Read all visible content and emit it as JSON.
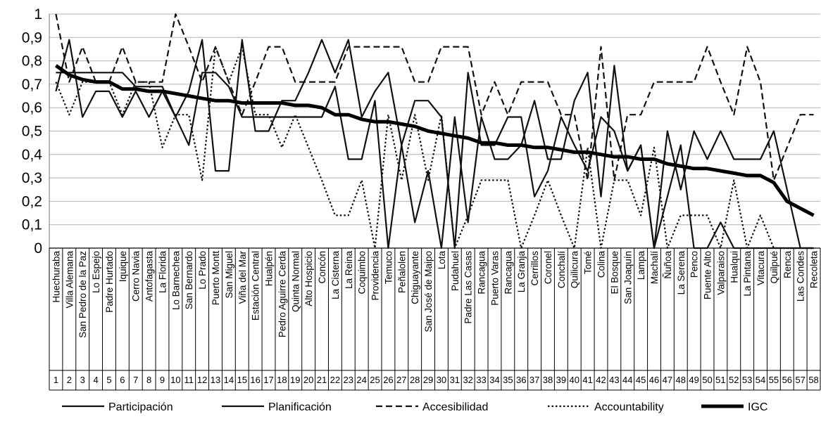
{
  "chart_data": {
    "type": "line",
    "title": "",
    "xlabel": "",
    "ylabel": "",
    "ylim": [
      0,
      1
    ],
    "yticks": [
      "0",
      "0,1",
      "0,2",
      "0,3",
      "0,4",
      "0,5",
      "0,6",
      "0,7",
      "0,8",
      "0,9",
      "1"
    ],
    "grid": true,
    "legend_position": "bottom",
    "categories": [
      "Huechuraba",
      "Villa Alemana",
      "San Pedro de la Paz",
      "Lo Espejo",
      "Padre Hurtado",
      "Iquique",
      "Cerro Navia",
      "Antofagasta",
      "La Florida",
      "Lo Barnechea",
      "San Bernardo",
      "Lo Prado",
      "Puerto Montt",
      "San Miguel",
      "Viña del Mar",
      "Estación Central",
      "Hualpén",
      "Pedro Aguirre Cerda",
      "Quinta Normal",
      "Alto Hospicio",
      "Concón",
      "La Cisterna",
      "La Reina",
      "Coquimbo",
      "Providencia",
      "Temuco",
      "Peñalolen",
      "Chiguayante",
      "San José de Maipo",
      "Lota",
      "Pudahuel",
      "Padre Las Casas",
      "Rancagua",
      "Puerto Varas",
      "Rancagua",
      "La Granja",
      "Cerrillos",
      "Coronel",
      "Conchalí",
      "Quilicura",
      "Tomé",
      "Colina",
      "El Bosque",
      "San Joaquín",
      "Lampa",
      "Machalí",
      "Ñuñoa",
      "La Serena",
      "Penco",
      "Puente Alto",
      "Valparaiso",
      "Hualqui",
      "La Pintana",
      "Vitacura",
      "Quilpué",
      "Renca",
      "Las Condes",
      "Recoleta"
    ],
    "numbers": [
      "1",
      "2",
      "3",
      "4",
      "5",
      "6",
      "7",
      "8",
      "9",
      "10",
      "11",
      "12",
      "13",
      "14",
      "15",
      "16",
      "17",
      "18",
      "19",
      "20",
      "21",
      "22",
      "23",
      "24",
      "25",
      "26",
      "27",
      "28",
      "29",
      "30",
      "31",
      "32",
      "33",
      "34",
      "35",
      "36",
      "37",
      "38",
      "39",
      "40",
      "41",
      "42",
      "43",
      "44",
      "45",
      "46",
      "47",
      "48",
      "49",
      "50",
      "51",
      "52",
      "53",
      "54",
      "55",
      "56",
      "57",
      "58"
    ],
    "series": [
      {
        "name": "Participación",
        "style": "solid",
        "width": 2.2,
        "color": "#111111",
        "values": [
          0.75,
          0.75,
          0.75,
          0.75,
          0.75,
          0.75,
          0.69,
          0.69,
          0.69,
          0.56,
          0.44,
          0.75,
          0.75,
          0.69,
          0.56,
          0.56,
          0.56,
          0.56,
          0.56,
          0.56,
          0.56,
          0.69,
          0.38,
          0.38,
          0.63,
          0.0,
          0.44,
          0.11,
          0.33,
          0.0,
          0.56,
          0.11,
          0.56,
          0.38,
          0.38,
          0.44,
          0.63,
          0.38,
          0.38,
          0.63,
          0.75,
          0.22,
          0.78,
          0.33,
          0.44,
          0.0,
          0.5,
          0.25,
          0.5,
          0.38,
          0.5,
          0.38,
          0.38,
          0.38,
          0.5,
          0.25,
          0.0,
          0.0
        ]
      },
      {
        "name": "Planificación",
        "style": "solid",
        "width": 2.2,
        "color": "#111111",
        "values": [
          0.67,
          0.89,
          0.56,
          0.67,
          0.67,
          0.56,
          0.67,
          0.56,
          0.67,
          0.56,
          0.67,
          0.89,
          0.33,
          0.33,
          0.89,
          0.5,
          0.5,
          0.63,
          0.63,
          0.75,
          0.89,
          0.75,
          0.89,
          0.56,
          0.67,
          0.75,
          0.44,
          0.63,
          0.63,
          0.56,
          0.0,
          0.75,
          0.44,
          0.44,
          0.56,
          0.56,
          0.22,
          0.33,
          0.56,
          0.44,
          0.33,
          0.56,
          0.5,
          0.33,
          0.44,
          0.0,
          0.22,
          0.44,
          0.0,
          0.0,
          0.11,
          0.0,
          0.0,
          0.0,
          0.0,
          0.0,
          0.0,
          0.0
        ]
      },
      {
        "name": "Accesibilidad",
        "style": "dashed",
        "width": 2.2,
        "color": "#111111",
        "values": [
          1.0,
          0.71,
          0.86,
          0.71,
          0.71,
          0.86,
          0.71,
          0.71,
          0.71,
          1.0,
          0.86,
          0.71,
          0.86,
          0.71,
          0.57,
          0.71,
          0.86,
          0.86,
          0.71,
          0.71,
          0.71,
          0.71,
          0.86,
          0.86,
          0.86,
          0.86,
          0.86,
          0.71,
          0.71,
          0.86,
          0.86,
          0.86,
          0.57,
          0.71,
          0.57,
          0.71,
          0.71,
          0.71,
          0.57,
          0.57,
          0.29,
          0.86,
          0.29,
          0.57,
          0.57,
          0.71,
          0.71,
          0.71,
          0.71,
          0.86,
          0.71,
          0.57,
          0.86,
          0.71,
          0.29,
          0.43,
          0.57,
          0.57
        ]
      },
      {
        "name": "Accountability",
        "style": "dotted",
        "width": 2.2,
        "color": "#111111",
        "values": [
          0.71,
          0.57,
          0.71,
          0.71,
          0.71,
          0.57,
          0.71,
          0.71,
          0.43,
          0.57,
          0.57,
          0.29,
          0.86,
          0.71,
          0.86,
          0.57,
          0.57,
          0.43,
          0.57,
          0.43,
          0.29,
          0.14,
          0.14,
          0.29,
          0.0,
          0.57,
          0.29,
          0.57,
          0.29,
          0.57,
          0.0,
          0.14,
          0.29,
          0.29,
          0.29,
          0.0,
          0.14,
          0.29,
          0.14,
          0.0,
          0.43,
          0.0,
          0.29,
          0.29,
          0.14,
          0.43,
          0.0,
          0.14,
          0.14,
          0.14,
          0.0,
          0.29,
          0.0,
          0.14,
          0.0,
          0.0,
          0.0,
          0.0
        ]
      },
      {
        "name": "IGC",
        "style": "solid",
        "width": 5,
        "color": "#000000",
        "values": [
          0.78,
          0.74,
          0.72,
          0.71,
          0.71,
          0.68,
          0.68,
          0.67,
          0.67,
          0.66,
          0.65,
          0.64,
          0.63,
          0.63,
          0.62,
          0.62,
          0.62,
          0.62,
          0.61,
          0.61,
          0.6,
          0.57,
          0.57,
          0.55,
          0.54,
          0.54,
          0.53,
          0.52,
          0.5,
          0.49,
          0.48,
          0.47,
          0.45,
          0.45,
          0.44,
          0.44,
          0.43,
          0.43,
          0.42,
          0.41,
          0.41,
          0.4,
          0.39,
          0.39,
          0.38,
          0.38,
          0.36,
          0.35,
          0.34,
          0.34,
          0.33,
          0.32,
          0.31,
          0.31,
          0.28,
          0.2,
          0.17,
          0.14
        ]
      }
    ]
  }
}
